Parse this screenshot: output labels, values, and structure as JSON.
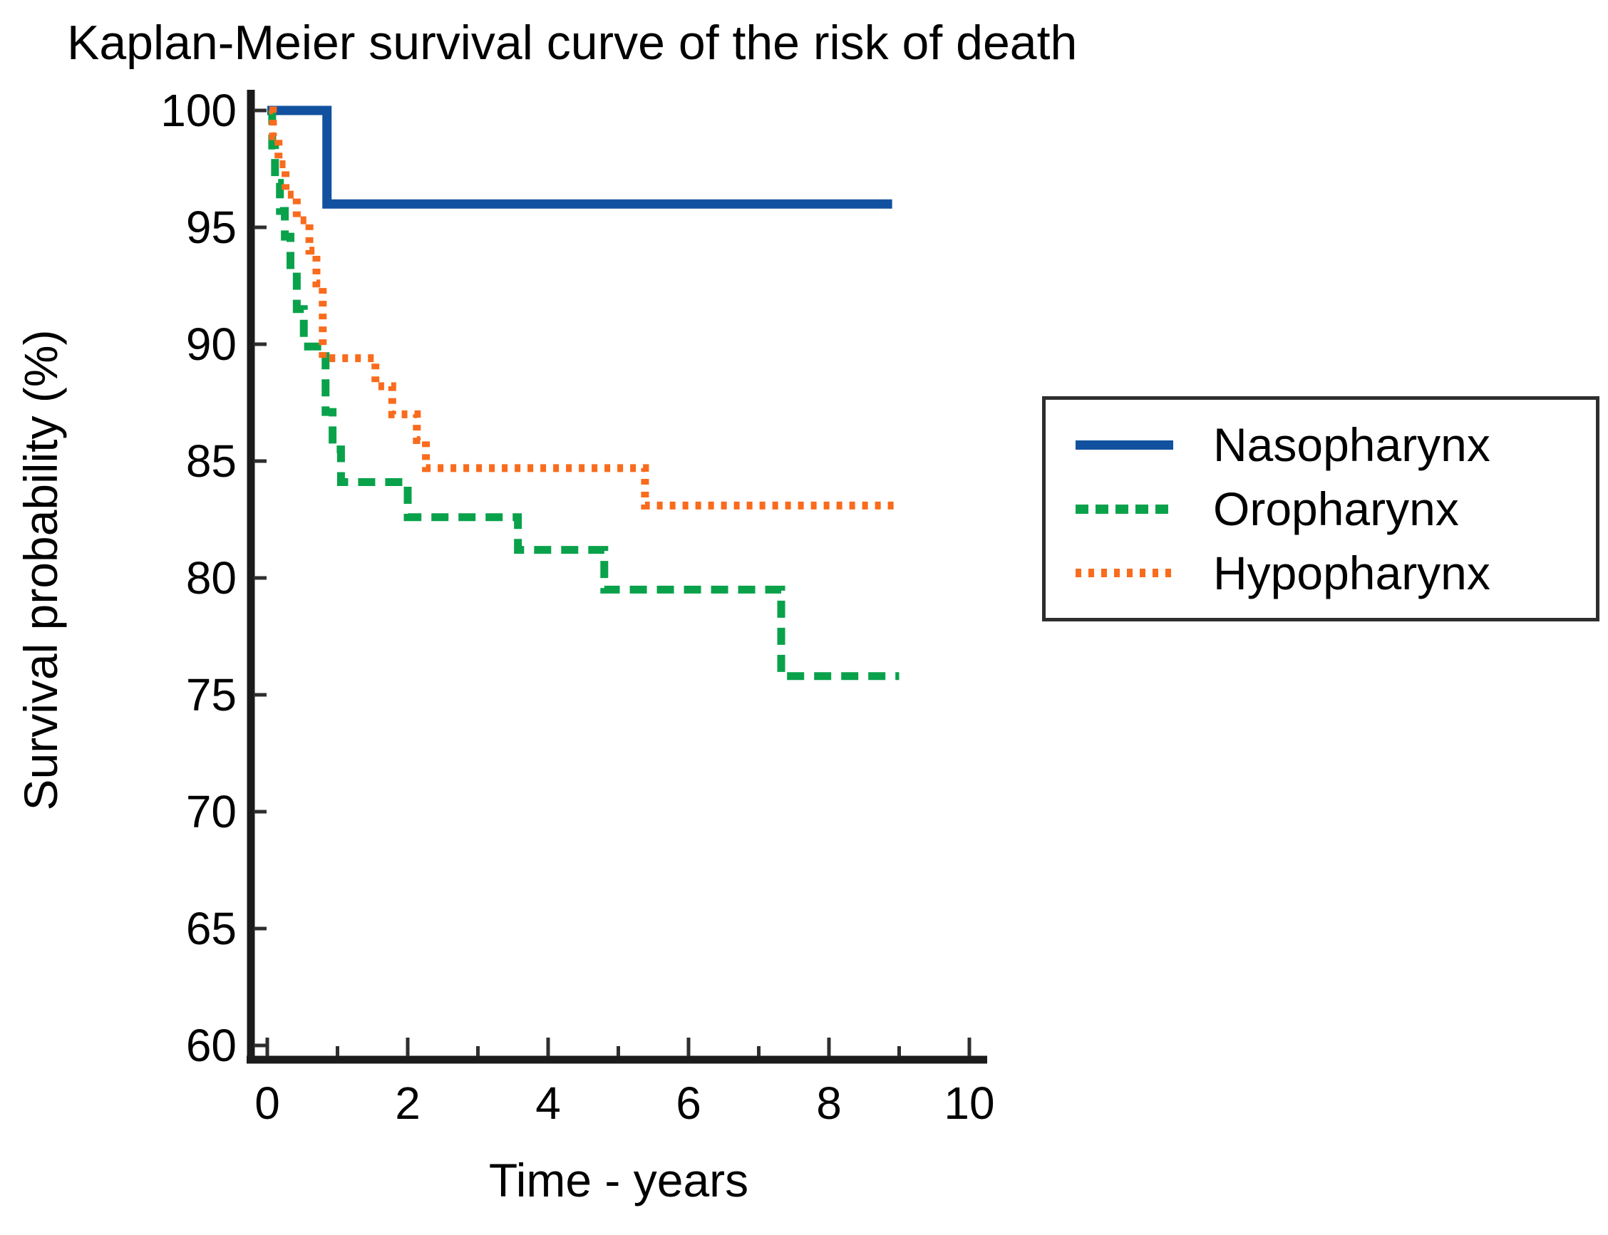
{
  "chart_data": {
    "type": "line",
    "subtype": "kaplan-meier-step-curves",
    "title": "Kaplan-Meier survival curve of the risk of death",
    "xlabel": "Time - years",
    "ylabel": "Survival probability (%)",
    "xlim": [
      0,
      10
    ],
    "ylim": [
      60,
      100
    ],
    "grid": false,
    "legend_position": "right-outside",
    "axis_color": "#1b1b1b",
    "tick_color": "#2e2e2e",
    "x_ticks_all": [
      0,
      1,
      2,
      3,
      4,
      5,
      6,
      7,
      8,
      9,
      10
    ],
    "x_ticks_labeled": [
      0,
      2,
      4,
      6,
      8,
      10
    ],
    "y_ticks": [
      100,
      95,
      90,
      85,
      80,
      75,
      70,
      65,
      60
    ],
    "series": [
      {
        "name": "Nasopharynx",
        "color": "#11519f",
        "line_style": "solid",
        "steps_time_pct": [
          [
            0,
            100
          ],
          [
            0.85,
            96
          ]
        ],
        "end_time": 8.9
      },
      {
        "name": "Oropharynx",
        "color": "#09a24b",
        "line_style": "dashed",
        "steps_time_pct": [
          [
            0.03,
            100
          ],
          [
            0.07,
            98.5
          ],
          [
            0.11,
            96.9
          ],
          [
            0.18,
            95.7
          ],
          [
            0.25,
            94.6
          ],
          [
            0.33,
            93.2
          ],
          [
            0.42,
            91.5
          ],
          [
            0.52,
            89.9
          ],
          [
            0.83,
            87.1
          ],
          [
            0.93,
            85.5
          ],
          [
            1.05,
            84.1
          ],
          [
            2.0,
            82.6
          ],
          [
            3.57,
            81.2
          ],
          [
            4.8,
            79.5
          ],
          [
            7.32,
            75.8
          ]
        ],
        "end_time": 9.0
      },
      {
        "name": "Hypopharynx",
        "color": "#f96b1d",
        "line_style": "dotted",
        "steps_time_pct": [
          [
            0.03,
            100
          ],
          [
            0.08,
            98.9
          ],
          [
            0.16,
            97.7
          ],
          [
            0.26,
            96.4
          ],
          [
            0.42,
            95.3
          ],
          [
            0.6,
            94.0
          ],
          [
            0.7,
            92.6
          ],
          [
            0.79,
            89.4
          ],
          [
            1.54,
            88.2
          ],
          [
            1.78,
            87.0
          ],
          [
            2.13,
            85.9
          ],
          [
            2.26,
            84.7
          ],
          [
            5.38,
            83.1
          ]
        ],
        "end_time": 9.0
      }
    ]
  }
}
